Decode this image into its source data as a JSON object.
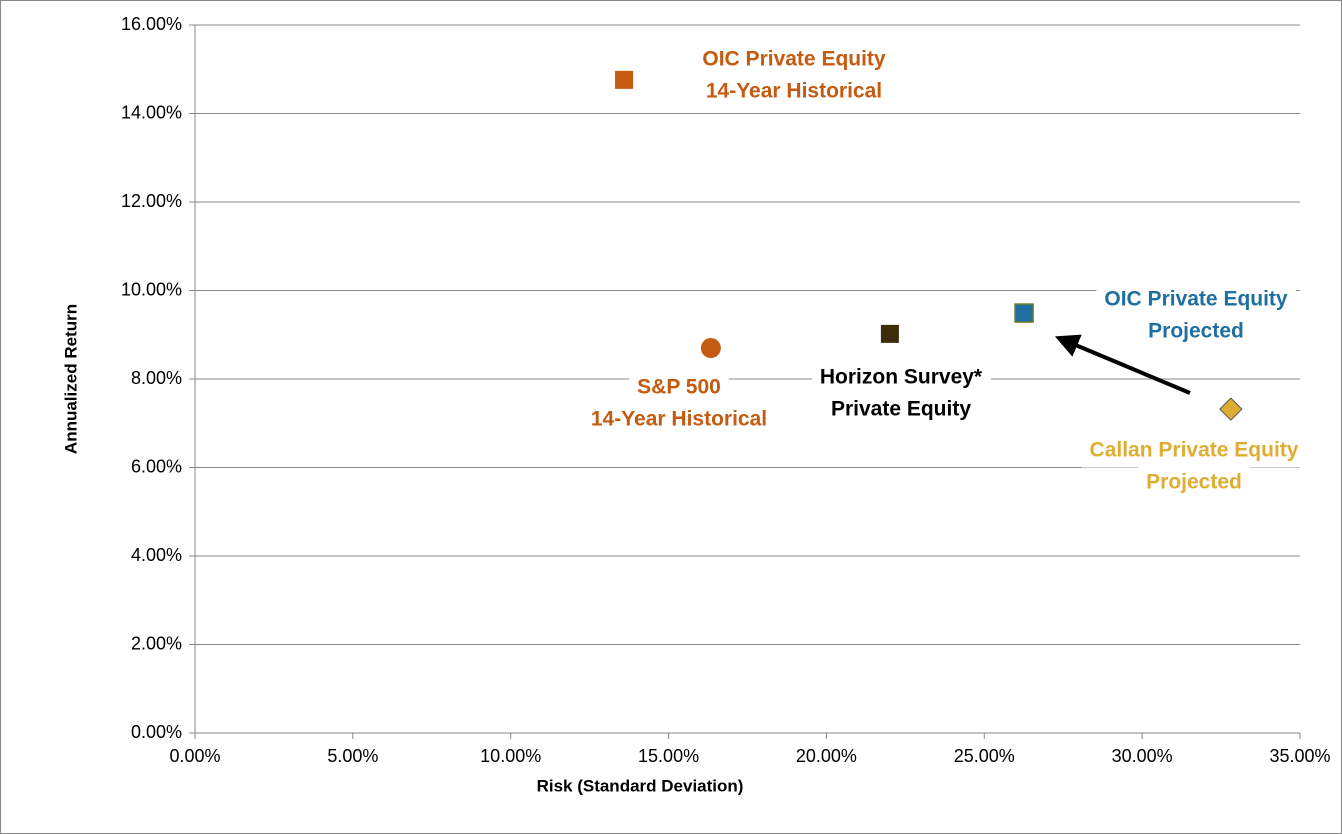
{
  "chart_data": {
    "type": "scatter",
    "x_label": "Risk (Standard Deviation)",
    "y_label": "Annualized Return",
    "xlim": [
      0,
      35
    ],
    "ylim": [
      0,
      16
    ],
    "xticks": [
      {
        "value": 0,
        "label": "0.00%"
      },
      {
        "value": 5,
        "label": "5.00%"
      },
      {
        "value": 10,
        "label": "10.00%"
      },
      {
        "value": 15,
        "label": "15.00%"
      },
      {
        "value": 20,
        "label": "20.00%"
      },
      {
        "value": 25,
        "label": "25.00%"
      },
      {
        "value": 30,
        "label": "30.00%"
      },
      {
        "value": 35,
        "label": "35.00%"
      }
    ],
    "yticks": [
      {
        "value": 0,
        "label": "0.00%"
      },
      {
        "value": 2,
        "label": "2.00%"
      },
      {
        "value": 4,
        "label": "4.00%"
      },
      {
        "value": 6,
        "label": "6.00%"
      },
      {
        "value": 8,
        "label": "8.00%"
      },
      {
        "value": 10,
        "label": "10.00%"
      },
      {
        "value": 12,
        "label": "12.00%"
      },
      {
        "value": 14,
        "label": "14.00%"
      },
      {
        "value": 16,
        "label": "16.00%"
      }
    ],
    "grid": true,
    "series": [
      {
        "label": [
          "OIC Private Equity",
          "14-Year Historical"
        ],
        "marker": "square",
        "color": "#c55a11",
        "x": [
          13.59
        ],
        "values": [
          14.76
        ]
      },
      {
        "label": [
          "S&P 500",
          "14-Year Historical"
        ],
        "marker": "circle",
        "color": "#c55a11",
        "x": [
          16.34
        ],
        "values": [
          8.7
        ]
      },
      {
        "label": [
          "Horizon Survey*",
          "Private Equity"
        ],
        "marker": "square",
        "color": "#3d2b0a",
        "label_color": "#000000",
        "x": [
          22.01
        ],
        "values": [
          9.02
        ]
      },
      {
        "label": [
          "OIC Private Equity",
          "Projected"
        ],
        "marker": "square",
        "color": "#1f6fa0",
        "x": [
          26.26
        ],
        "values": [
          9.49
        ]
      },
      {
        "label": [
          "Callan Private Equity",
          "Projected"
        ],
        "marker": "diamond",
        "color": "#e0ad33",
        "x": [
          32.81
        ],
        "values": [
          7.32
        ]
      }
    ]
  }
}
